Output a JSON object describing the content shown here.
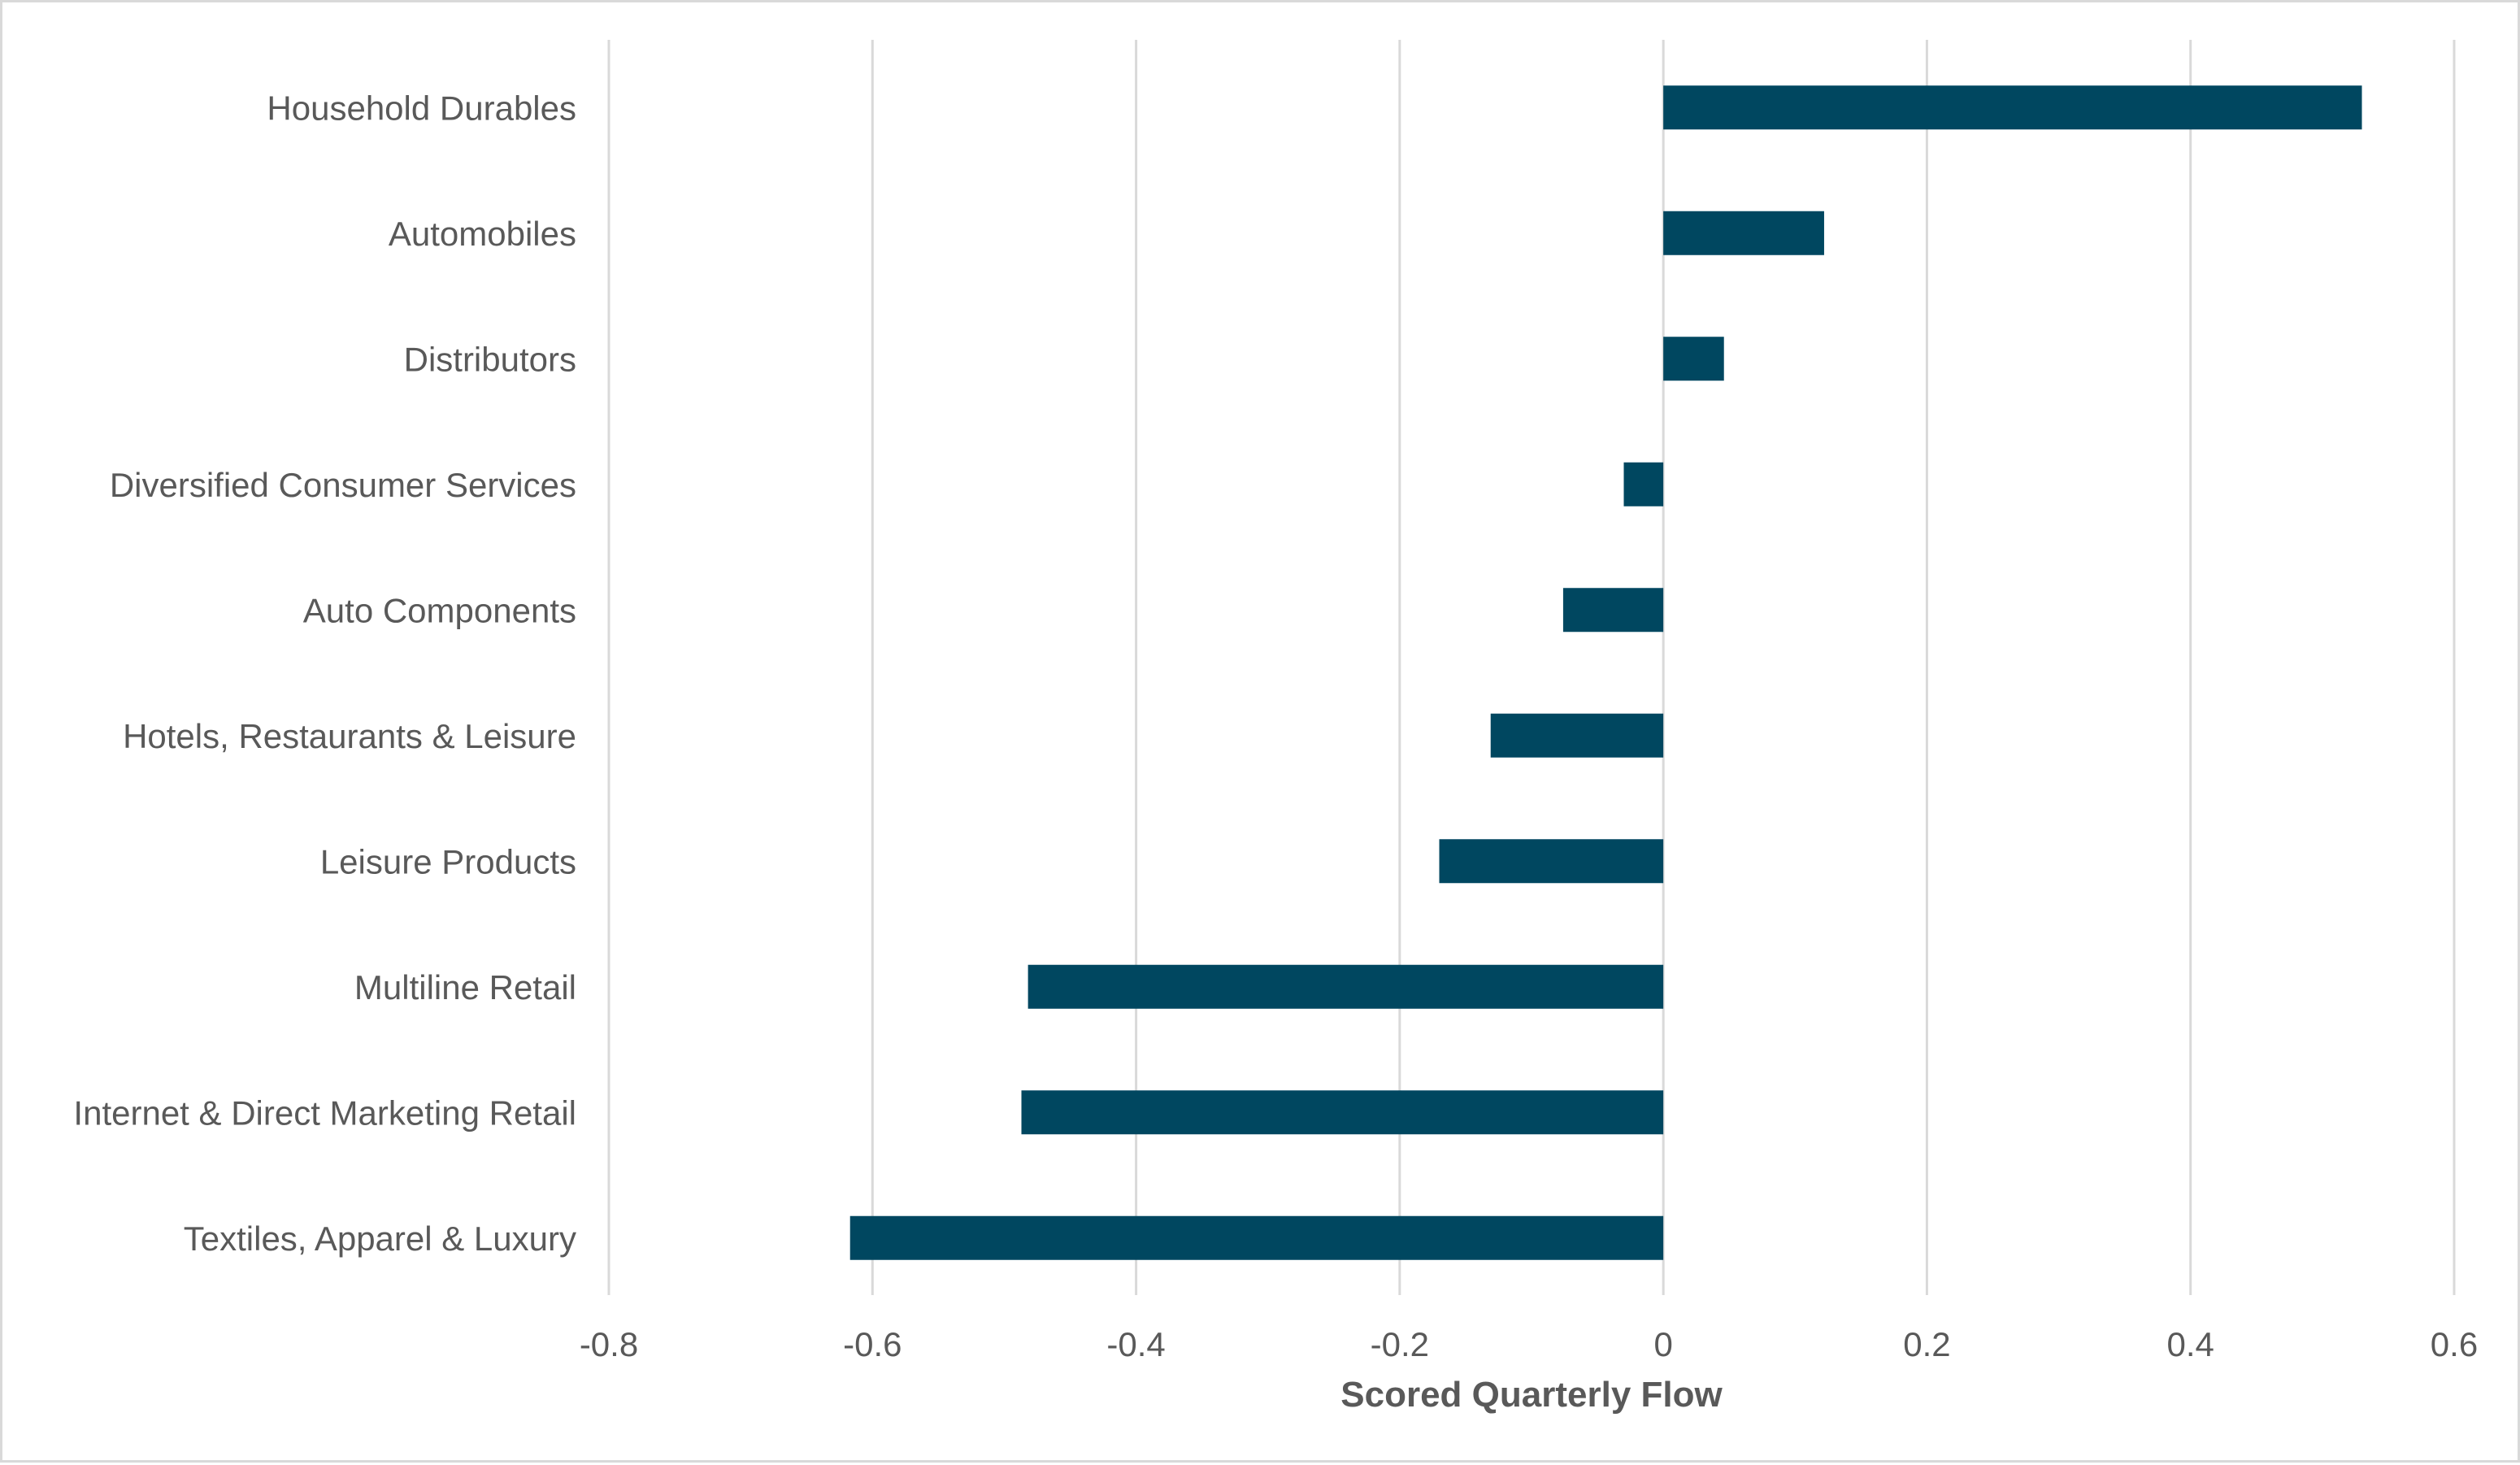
{
  "chart_data": {
    "type": "bar",
    "orientation": "horizontal",
    "categories": [
      "Household Durables",
      "Automobiles",
      "Distributors",
      "Diversified Consumer Services",
      "Auto Components",
      "Hotels, Restaurants & Leisure",
      "Leisure Products",
      "Multiline Retail",
      "Internet & Direct Marketing Retail",
      "Textiles, Apparel & Luxury"
    ],
    "values": [
      0.53,
      0.122,
      0.046,
      -0.03,
      -0.076,
      -0.131,
      -0.17,
      -0.482,
      -0.487,
      -0.617
    ],
    "title": "",
    "xlabel": "Scored Quarterly Flow",
    "ylabel": "",
    "xlim": [
      -0.8,
      0.6
    ],
    "xticks": [
      -0.8,
      -0.6,
      -0.4,
      -0.2,
      0,
      0.2,
      0.4,
      0.6
    ],
    "xtick_labels": [
      "-0.8",
      "-0.6",
      "-0.4",
      "-0.2",
      "0",
      "0.2",
      "0.4",
      "0.6"
    ],
    "grid": "vertical",
    "legend": "none",
    "bar_color": "#004760",
    "grid_color": "#d9d9d9",
    "text_color": "#595959"
  }
}
